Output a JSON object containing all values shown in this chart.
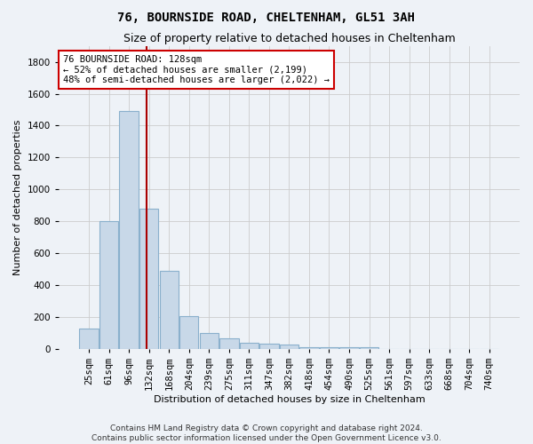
{
  "title": "76, BOURNSIDE ROAD, CHELTENHAM, GL51 3AH",
  "subtitle": "Size of property relative to detached houses in Cheltenham",
  "xlabel": "Distribution of detached houses by size in Cheltenham",
  "ylabel": "Number of detached properties",
  "bar_labels": [
    "25sqm",
    "61sqm",
    "96sqm",
    "132sqm",
    "168sqm",
    "204sqm",
    "239sqm",
    "275sqm",
    "311sqm",
    "347sqm",
    "382sqm",
    "418sqm",
    "454sqm",
    "490sqm",
    "525sqm",
    "561sqm",
    "597sqm",
    "633sqm",
    "668sqm",
    "704sqm",
    "740sqm"
  ],
  "bar_values": [
    125,
    800,
    1490,
    880,
    490,
    205,
    100,
    65,
    40,
    35,
    25,
    10,
    10,
    10,
    10,
    0,
    0,
    0,
    0,
    0,
    0
  ],
  "bar_color": "#c8d8e8",
  "bar_edgecolor": "#8ab0cc",
  "bar_linewidth": 0.8,
  "grid_color": "#cccccc",
  "background_color": "#eef2f7",
  "property_label": "76 BOURNSIDE ROAD: 128sqm",
  "annotation_line1": "← 52% of detached houses are smaller (2,199)",
  "annotation_line2": "48% of semi-detached houses are larger (2,022) →",
  "red_line_color": "#aa0000",
  "annotation_box_facecolor": "#ffffff",
  "annotation_box_edge": "#cc0000",
  "ylim": [
    0,
    1900
  ],
  "yticks": [
    0,
    200,
    400,
    600,
    800,
    1000,
    1200,
    1400,
    1600,
    1800
  ],
  "footer_line1": "Contains HM Land Registry data © Crown copyright and database right 2024.",
  "footer_line2": "Contains public sector information licensed under the Open Government Licence v3.0.",
  "title_fontsize": 10,
  "subtitle_fontsize": 9,
  "axis_label_fontsize": 8,
  "tick_fontsize": 7.5,
  "annotation_fontsize": 7.5,
  "footer_fontsize": 6.5
}
